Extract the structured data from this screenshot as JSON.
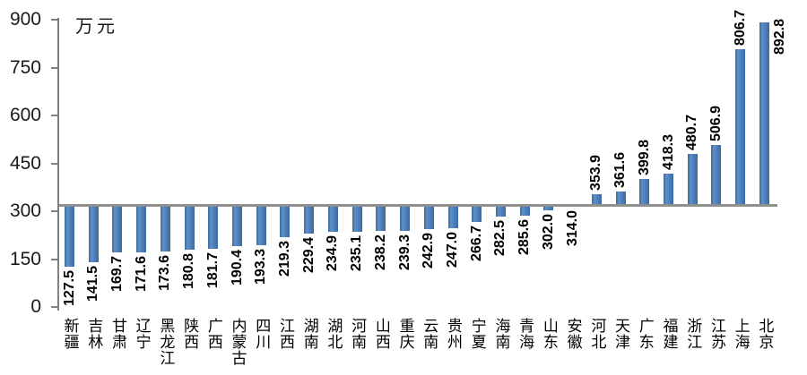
{
  "chart_data": {
    "type": "bar",
    "title": "",
    "unit_label": "万元",
    "categories": [
      "新疆",
      "吉林",
      "甘肃",
      "辽宁",
      "黑龙江",
      "陕西",
      "广西",
      "内蒙古",
      "四川",
      "江西",
      "湖南",
      "湖北",
      "河南",
      "山西",
      "重庆",
      "云南",
      "贵州",
      "宁夏",
      "海南",
      "青海",
      "山东",
      "安徽",
      "河北",
      "天津",
      "广东",
      "福建",
      "浙江",
      "江苏",
      "上海",
      "北京"
    ],
    "values": [
      127.5,
      141.5,
      169.7,
      171.6,
      173.6,
      180.8,
      181.7,
      190.4,
      193.3,
      219.3,
      229.4,
      234.9,
      235.1,
      238.2,
      239.3,
      242.9,
      247.0,
      266.7,
      282.5,
      285.6,
      302.0,
      314.0,
      353.9,
      361.6,
      399.8,
      418.3,
      480.7,
      506.9,
      806.7,
      892.8
    ],
    "value_label_format": "1-decimal",
    "ylim": [
      0,
      900
    ],
    "yticks": [
      0,
      150,
      300,
      450,
      600,
      750,
      900
    ],
    "baseline_value": 319,
    "baseline_note": "horizontal reference line from which bars are drawn (unlabeled, approx.)",
    "grid": false,
    "legend": "none",
    "bar_color": "#4F81BD",
    "baseline_color": "#8F8F8F",
    "axis_color": "#808080",
    "text_color": "#000000",
    "value_label_orientation": "rotated-90-ccw",
    "category_label_orientation": "vertical-stacked"
  }
}
